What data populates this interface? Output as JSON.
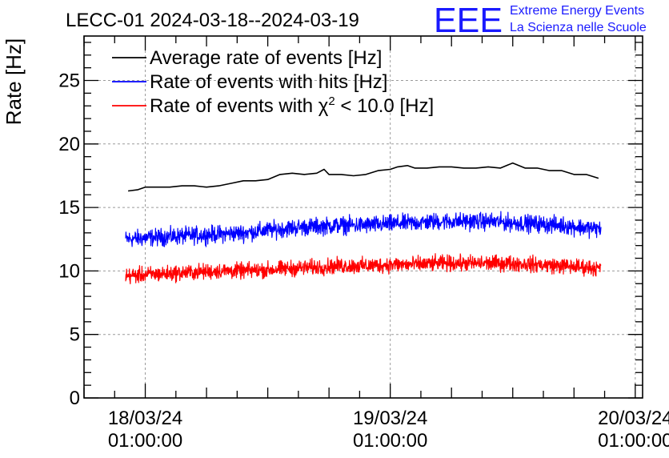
{
  "title": "LECC-01 2024-03-18--2024-03-19",
  "logo": {
    "mark": "EEE",
    "line1": "Extreme Energy Events",
    "line2": "La Scienza nelle Scuole",
    "color": "#1a1aff"
  },
  "chart_data": {
    "type": "line",
    "title": "LECC-01 2024-03-18--2024-03-19",
    "ylabel": "Rate [Hz]",
    "xlabel": "",
    "ylim": [
      0,
      28.5
    ],
    "xlim": [
      -0.25,
      2.03
    ],
    "grid": true,
    "legend_position": "top-left",
    "y_ticks": [
      0,
      5,
      10,
      15,
      20,
      25
    ],
    "x_major_ticks": [
      {
        "x": 0,
        "line1": "18/03/24",
        "line2": "01:00:00"
      },
      {
        "x": 1,
        "line1": "19/03/24",
        "line2": "01:00:00"
      },
      {
        "x": 2,
        "line1": "20/03/24",
        "line2": "01:00:00"
      }
    ],
    "x_unit_note": "x in days relative to 18/03/24 01:00:00",
    "series": [
      {
        "name": "Average rate of events [Hz]",
        "legend_main": "Average rate of events [Hz]",
        "color": "#000000",
        "noise": 0,
        "x": [
          -0.07,
          -0.03,
          0.0,
          0.05,
          0.1,
          0.15,
          0.2,
          0.25,
          0.3,
          0.35,
          0.4,
          0.45,
          0.5,
          0.55,
          0.6,
          0.65,
          0.7,
          0.73,
          0.75,
          0.8,
          0.85,
          0.9,
          0.95,
          1.0,
          1.03,
          1.07,
          1.1,
          1.15,
          1.2,
          1.25,
          1.3,
          1.35,
          1.4,
          1.45,
          1.5,
          1.55,
          1.6,
          1.65,
          1.7,
          1.75,
          1.8,
          1.85
        ],
        "values": [
          16.3,
          16.4,
          16.6,
          16.6,
          16.6,
          16.7,
          16.7,
          16.6,
          16.7,
          16.9,
          17.1,
          17.1,
          17.2,
          17.6,
          17.7,
          17.6,
          17.7,
          18.0,
          17.6,
          17.6,
          17.5,
          17.6,
          17.9,
          18.0,
          18.2,
          18.3,
          18.1,
          18.1,
          18.2,
          18.2,
          18.1,
          18.1,
          18.2,
          18.1,
          18.5,
          18.1,
          18.1,
          17.9,
          17.9,
          17.6,
          17.6,
          17.3
        ]
      },
      {
        "name": "Rate of events with hits [Hz]",
        "legend_main": "Rate of events with hits [Hz]",
        "color": "#0000ff",
        "noise": 0.6,
        "x": [
          -0.08,
          0.0,
          0.1,
          0.2,
          0.3,
          0.4,
          0.5,
          0.6,
          0.7,
          0.8,
          0.9,
          1.0,
          1.1,
          1.2,
          1.3,
          1.4,
          1.5,
          1.6,
          1.7,
          1.8,
          1.86
        ],
        "values": [
          12.5,
          12.6,
          12.7,
          12.8,
          12.9,
          13.0,
          13.2,
          13.4,
          13.5,
          13.6,
          13.6,
          13.7,
          13.8,
          13.9,
          13.9,
          13.9,
          13.8,
          13.7,
          13.6,
          13.4,
          13.3
        ]
      },
      {
        "name": "Rate of events with χ² < 10.0 [Hz]",
        "legend_main": "Rate of events with χ",
        "legend_sup": "2",
        "legend_tail": " < 10.0 [Hz]",
        "color": "#ff0000",
        "noise": 0.55,
        "x": [
          -0.08,
          0.0,
          0.1,
          0.2,
          0.3,
          0.4,
          0.5,
          0.6,
          0.7,
          0.8,
          0.9,
          1.0,
          1.1,
          1.2,
          1.3,
          1.4,
          1.5,
          1.6,
          1.7,
          1.8,
          1.86
        ],
        "values": [
          9.6,
          9.7,
          9.8,
          9.9,
          10.0,
          10.0,
          10.1,
          10.2,
          10.3,
          10.4,
          10.4,
          10.5,
          10.5,
          10.6,
          10.6,
          10.6,
          10.6,
          10.5,
          10.4,
          10.3,
          10.2
        ]
      }
    ]
  }
}
